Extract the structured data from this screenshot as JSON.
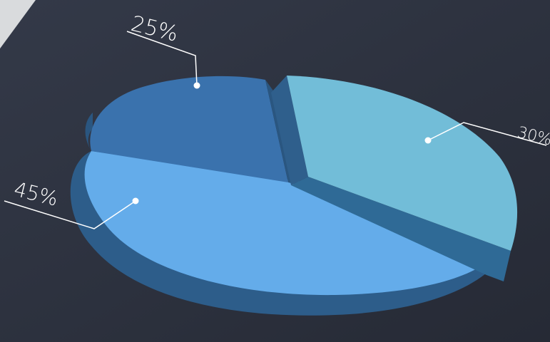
{
  "chart_data": {
    "type": "pie",
    "categories": [
      "",
      "",
      ""
    ],
    "values": [
      25,
      30,
      45
    ],
    "labels": [
      "25%",
      "30%",
      "45%"
    ],
    "colors": {
      "slice_25": "#3a72ad",
      "slice_30": "#72bdd8",
      "slice_45": "#64acea",
      "side_dark": "#2d5b86",
      "background": "#2d3240"
    },
    "title": "",
    "legend": "none",
    "style": "3d-exploded"
  }
}
